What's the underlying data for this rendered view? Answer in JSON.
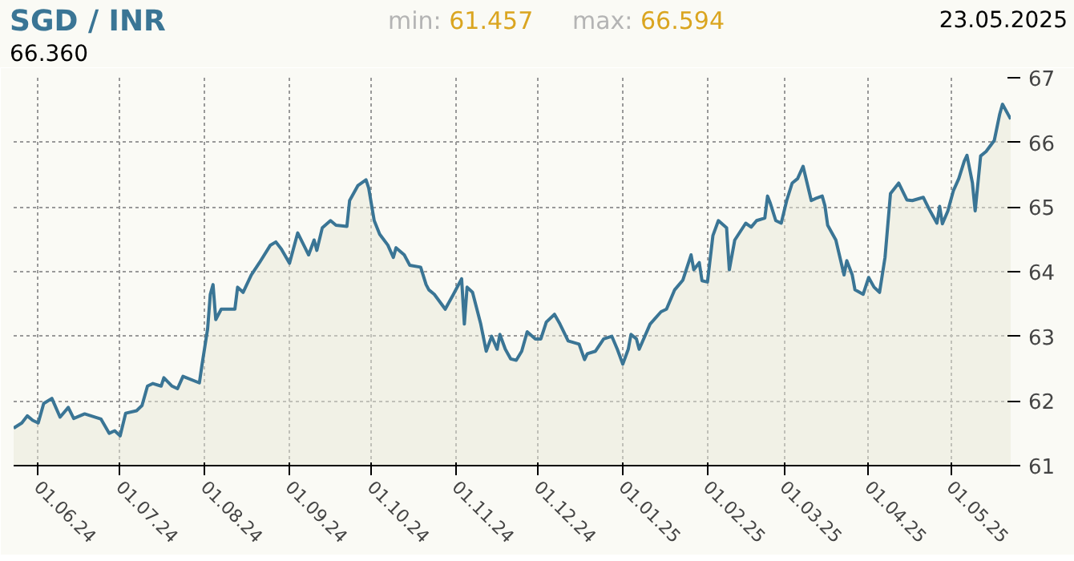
{
  "chart_data": {
    "type": "area",
    "title": "SGD / INR",
    "annotations": [
      "min: 61.457",
      "max: 66.594",
      "23.05.2025",
      "66.360"
    ],
    "x": [
      "2024-05-23",
      "2024-05-26",
      "2024-05-28",
      "2024-05-30",
      "2024-06-01",
      "2024-06-03",
      "2024-06-06",
      "2024-06-09",
      "2024-06-12",
      "2024-06-14",
      "2024-06-18",
      "2024-06-21",
      "2024-06-24",
      "2024-06-27",
      "2024-06-29",
      "2024-07-01",
      "2024-07-03",
      "2024-07-07",
      "2024-07-09",
      "2024-07-11",
      "2024-07-13",
      "2024-07-16",
      "2024-07-17",
      "2024-07-20",
      "2024-07-22",
      "2024-07-24",
      "2024-07-30",
      "2024-07-31",
      "2024-08-02",
      "2024-08-03",
      "2024-08-04",
      "2024-08-05",
      "2024-08-07",
      "2024-08-12",
      "2024-08-13",
      "2024-08-15",
      "2024-08-18",
      "2024-08-21",
      "2024-08-25",
      "2024-08-27",
      "2024-08-29",
      "2024-09-01",
      "2024-09-04",
      "2024-09-08",
      "2024-09-10",
      "2024-09-11",
      "2024-09-13",
      "2024-09-16",
      "2024-09-18",
      "2024-09-22",
      "2024-09-23",
      "2024-09-26",
      "2024-09-29",
      "2024-09-30",
      "2024-10-02",
      "2024-10-04",
      "2024-10-07",
      "2024-10-09",
      "2024-10-10",
      "2024-10-13",
      "2024-10-15",
      "2024-10-19",
      "2024-10-21",
      "2024-10-22",
      "2024-10-24",
      "2024-10-28",
      "2024-10-31",
      "2024-11-03",
      "2024-11-04",
      "2024-11-05",
      "2024-11-07",
      "2024-11-10",
      "2024-11-12",
      "2024-11-14",
      "2024-11-16",
      "2024-11-17",
      "2024-11-19",
      "2024-11-21",
      "2024-11-23",
      "2024-11-25",
      "2024-11-27",
      "2024-11-30",
      "2024-12-02",
      "2024-12-04",
      "2024-12-07",
      "2024-12-09",
      "2024-12-12",
      "2024-12-16",
      "2024-12-18",
      "2024-12-19",
      "2024-12-22",
      "2024-12-25",
      "2024-12-28",
      "2024-12-30",
      "2025-01-01",
      "2025-01-03",
      "2025-01-04",
      "2025-01-06",
      "2025-01-07",
      "2025-01-11",
      "2025-01-15",
      "2025-01-17",
      "2025-01-20",
      "2025-01-23",
      "2025-01-26",
      "2025-01-27",
      "2025-01-29",
      "2025-01-30",
      "2025-02-01",
      "2025-02-03",
      "2025-02-05",
      "2025-02-08",
      "2025-02-09",
      "2025-02-11",
      "2025-02-15",
      "2025-02-17",
      "2025-02-19",
      "2025-02-22",
      "2025-02-23",
      "2025-02-24",
      "2025-02-26",
      "2025-02-28",
      "2025-03-02",
      "2025-03-04",
      "2025-03-06",
      "2025-03-08",
      "2025-03-11",
      "2025-03-13",
      "2025-03-15",
      "2025-03-16",
      "2025-03-17",
      "2025-03-20",
      "2025-03-23",
      "2025-03-24",
      "2025-03-26",
      "2025-03-27",
      "2025-03-30",
      "2025-04-01",
      "2025-04-03",
      "2025-04-05",
      "2025-04-07",
      "2025-04-09",
      "2025-04-12",
      "2025-04-15",
      "2025-04-17",
      "2025-04-21",
      "2025-04-23",
      "2025-04-26",
      "2025-04-27",
      "2025-04-28",
      "2025-04-30",
      "2025-05-02",
      "2025-05-04",
      "2025-05-06",
      "2025-05-07",
      "2025-05-09",
      "2025-05-10",
      "2025-05-12",
      "2025-05-14",
      "2025-05-17",
      "2025-05-19",
      "2025-05-20",
      "2025-05-23"
    ],
    "series": [
      {
        "color": "#3a7595",
        "values": [
          61.58,
          61.66,
          61.77,
          61.7,
          61.66,
          61.96,
          62.04,
          61.75,
          61.9,
          61.73,
          61.8,
          61.76,
          61.72,
          61.5,
          61.54,
          61.46,
          61.81,
          61.85,
          61.93,
          62.23,
          62.27,
          62.23,
          62.36,
          62.23,
          62.19,
          62.38,
          62.28,
          62.57,
          63.11,
          63.65,
          63.8,
          63.26,
          63.42,
          63.42,
          63.76,
          63.68,
          63.95,
          64.14,
          64.41,
          64.46,
          64.35,
          64.13,
          64.6,
          64.26,
          64.49,
          64.33,
          64.68,
          64.79,
          64.72,
          64.7,
          65.1,
          65.33,
          65.42,
          65.29,
          64.79,
          64.58,
          64.41,
          64.22,
          64.37,
          64.26,
          64.1,
          64.07,
          63.8,
          63.72,
          63.65,
          63.42,
          63.65,
          63.89,
          63.19,
          63.76,
          63.68,
          63.19,
          62.77,
          63.0,
          62.8,
          63.03,
          62.8,
          62.65,
          62.63,
          62.77,
          63.07,
          62.96,
          62.96,
          63.22,
          63.34,
          63.19,
          62.93,
          62.88,
          62.64,
          62.73,
          62.77,
          62.96,
          63.0,
          62.8,
          62.57,
          62.8,
          63.03,
          62.96,
          62.8,
          63.19,
          63.38,
          63.42,
          63.72,
          63.87,
          64.26,
          64.03,
          64.14,
          63.86,
          63.84,
          64.56,
          64.79,
          64.68,
          64.03,
          64.49,
          64.75,
          64.69,
          64.79,
          64.83,
          65.17,
          65.06,
          64.79,
          64.75,
          65.1,
          65.37,
          65.44,
          65.63,
          65.1,
          65.14,
          65.17,
          65.02,
          64.72,
          64.49,
          63.95,
          64.17,
          63.95,
          63.72,
          63.65,
          63.91,
          63.76,
          63.68,
          64.22,
          65.21,
          65.37,
          65.11,
          65.1,
          65.15,
          64.98,
          64.75,
          65.01,
          64.74,
          64.94,
          65.25,
          65.44,
          65.71,
          65.8,
          65.37,
          64.94,
          65.79,
          65.86,
          66.03,
          66.44,
          66.59,
          66.36
        ]
      }
    ],
    "xlim": [
      "2024-05-23",
      "2025-05-23"
    ],
    "xticks": [
      {
        "value": "2024-06-01",
        "label": "01.06.24"
      },
      {
        "value": "2024-07-01",
        "label": "01.07.24"
      },
      {
        "value": "2024-08-01",
        "label": "01.08.24"
      },
      {
        "value": "2024-09-01",
        "label": "01.09.24"
      },
      {
        "value": "2024-10-01",
        "label": "01.10.24"
      },
      {
        "value": "2024-11-01",
        "label": "01.11.24"
      },
      {
        "value": "2024-12-01",
        "label": "01.12.24"
      },
      {
        "value": "2025-01-01",
        "label": "01.01.25"
      },
      {
        "value": "2025-02-01",
        "label": "01.02.25"
      },
      {
        "value": "2025-03-01",
        "label": "01.03.25"
      },
      {
        "value": "2025-04-01",
        "label": "01.04.25"
      },
      {
        "value": "2025-05-01",
        "label": "01.05.25"
      }
    ],
    "ylim": [
      61,
      67
    ],
    "yticks": [
      61,
      62,
      63,
      64,
      65,
      66,
      67
    ],
    "grid": true
  }
}
